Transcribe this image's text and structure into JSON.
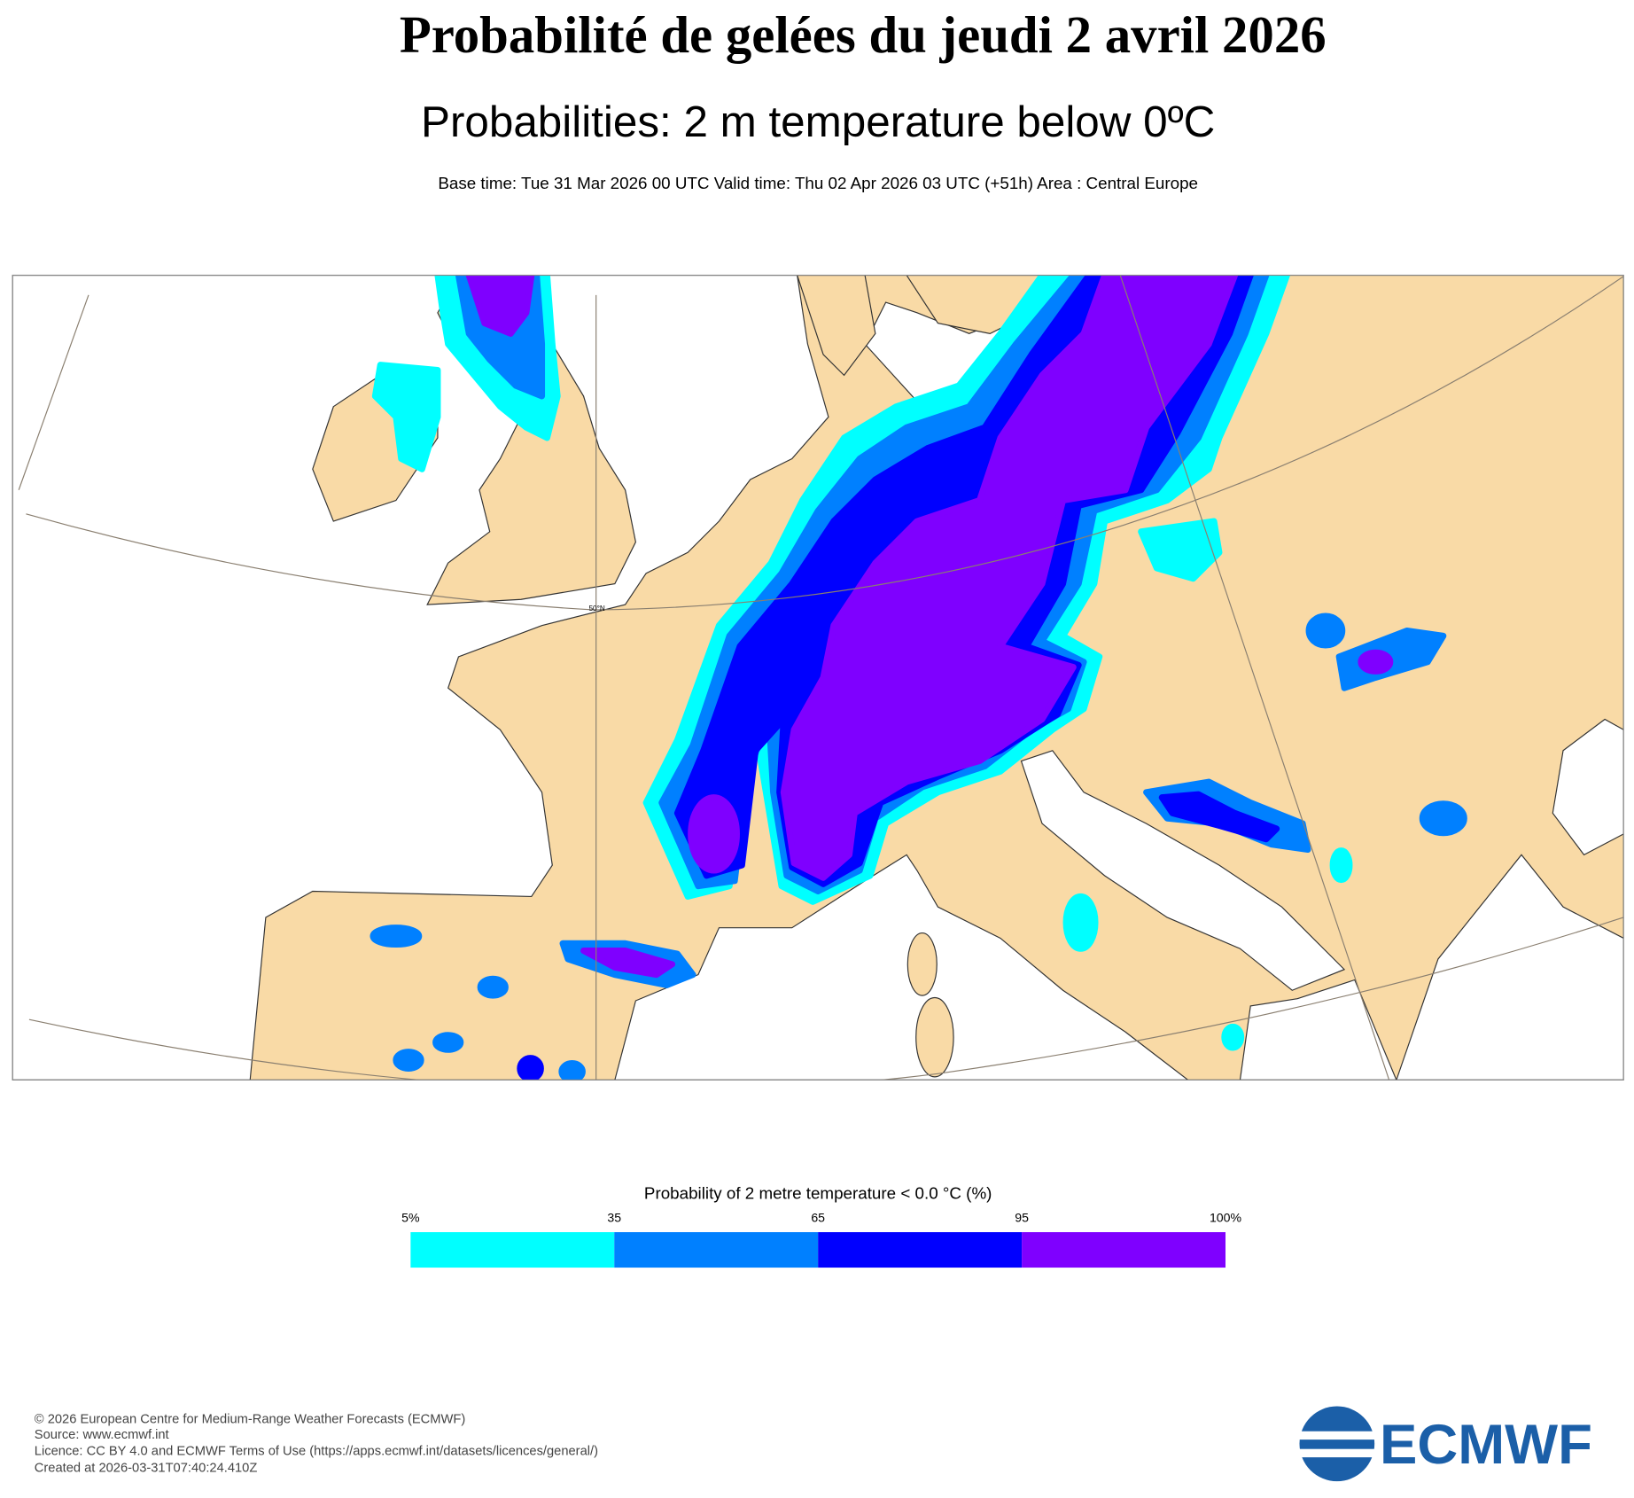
{
  "header": {
    "title": "Probabilité de gelées du jeudi 2 avril 2026",
    "subtitle": "Probabilities: 2 m temperature below 0ºC",
    "info": "Base time: Tue 31 Mar 2026 00 UTC Valid time: Thu 02 Apr 2026 03 UTC (+51h) Area : Central Europe"
  },
  "map": {
    "latitude_label": "50°N"
  },
  "legend": {
    "title": "Probability of 2 metre temperature < 0.0 °C (%)",
    "ticks": [
      {
        "value": 5,
        "label": "5%"
      },
      35,
      65,
      95,
      {
        "value": 100,
        "label": "100%"
      }
    ],
    "colors": [
      "#00ffff",
      "#0080ff",
      "#0000ff",
      "#7f00ff"
    ]
  },
  "footer": {
    "lines": [
      "© 2026 European Centre for Medium-Range Weather Forecasts (ECMWF)",
      "Source: www.ecmwf.int",
      "Licence: CC BY 4.0 and ECMWF Terms of Use (https://apps.ecmwf.int/datasets/licences/general/)",
      "Created at 2026-03-31T07:40:24.410Z"
    ]
  },
  "logo": {
    "text": "ECMWF"
  }
}
